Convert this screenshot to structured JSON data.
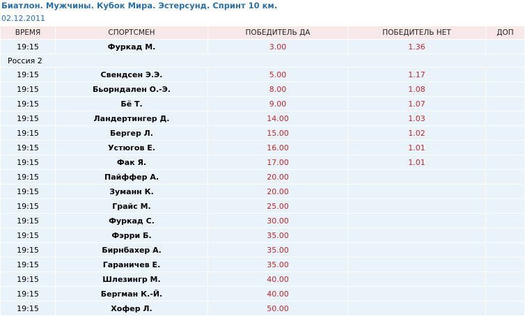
{
  "header": {
    "title": "Биатлон. Мужчины. Кубок Мира. Эстерсунд. Спринт 10 км.",
    "date": "02.12.2011"
  },
  "columns": [
    "ВРЕМЯ",
    "СПОРТСМЕН",
    "ПОБЕДИТЕЛЬ ДА",
    "ПОБЕДИТЕЛЬ НЕТ",
    "ДОП"
  ],
  "rows_top": [
    {
      "time": "19:15",
      "name": "Фуркад М.",
      "yes": "3.00",
      "no": "1.36",
      "extra": ""
    }
  ],
  "group_label": "Россия 2",
  "rows": [
    {
      "time": "19:15",
      "name": "Свендсен Э.Э.",
      "yes": "5.00",
      "no": "1.17",
      "extra": ""
    },
    {
      "time": "19:15",
      "name": "Бьорндален О.-Э.",
      "yes": "8.00",
      "no": "1.08",
      "extra": ""
    },
    {
      "time": "19:15",
      "name": "Бё Т.",
      "yes": "9.00",
      "no": "1.07",
      "extra": ""
    },
    {
      "time": "19:15",
      "name": "Ландертингер Д.",
      "yes": "14.00",
      "no": "1.03",
      "extra": ""
    },
    {
      "time": "19:15",
      "name": "Бергер Л.",
      "yes": "15.00",
      "no": "1.02",
      "extra": ""
    },
    {
      "time": "19:15",
      "name": "Устюгов Е.",
      "yes": "16.00",
      "no": "1.01",
      "extra": ""
    },
    {
      "time": "19:15",
      "name": "Фак Я.",
      "yes": "17.00",
      "no": "1.01",
      "extra": ""
    },
    {
      "time": "19:15",
      "name": "Пайффер А.",
      "yes": "20.00",
      "no": "",
      "extra": ""
    },
    {
      "time": "19:15",
      "name": "Зуманн К.",
      "yes": "20.00",
      "no": "",
      "extra": ""
    },
    {
      "time": "19:15",
      "name": "Грайс М.",
      "yes": "25.00",
      "no": "",
      "extra": ""
    },
    {
      "time": "19:15",
      "name": "Фуркад С.",
      "yes": "30.00",
      "no": "",
      "extra": ""
    },
    {
      "time": "19:15",
      "name": "Фэрри Б.",
      "yes": "35.00",
      "no": "",
      "extra": ""
    },
    {
      "time": "19:15",
      "name": "Бирнбахер А.",
      "yes": "35.00",
      "no": "",
      "extra": ""
    },
    {
      "time": "19:15",
      "name": "Гараничев Е.",
      "yes": "35.00",
      "no": "",
      "extra": ""
    },
    {
      "time": "19:15",
      "name": "Шлезингр М.",
      "yes": "40.00",
      "no": "",
      "extra": ""
    },
    {
      "time": "19:15",
      "name": "Бергман К.-Й.",
      "yes": "40.00",
      "no": "",
      "extra": ""
    },
    {
      "time": "19:15",
      "name": "Хофер Л.",
      "yes": "50.00",
      "no": "",
      "extra": ""
    }
  ]
}
